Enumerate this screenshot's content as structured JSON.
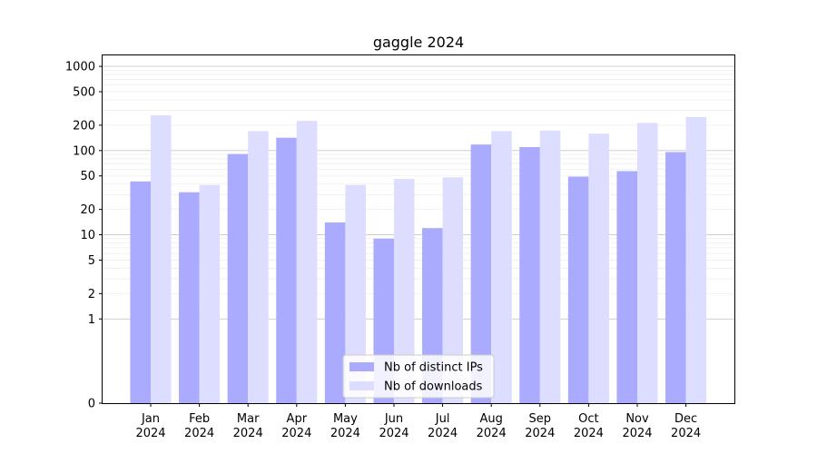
{
  "chart_data": {
    "type": "bar",
    "title": "gaggle 2024",
    "xlabel": "",
    "ylabel": "",
    "yscale": "symlog",
    "ylim": [
      0,
      1350
    ],
    "yticks": [
      0,
      1,
      2,
      5,
      10,
      20,
      50,
      100,
      200,
      500,
      1000
    ],
    "ytick_labels": [
      "0",
      "1",
      "2",
      "5",
      "10",
      "20",
      "50",
      "100",
      "200",
      "500",
      "1000"
    ],
    "grid": true,
    "legend_position": "bottom-center",
    "categories": [
      "Jan\n2024",
      "Feb\n2024",
      "Mar\n2024",
      "Apr\n2024",
      "May\n2024",
      "Jun\n2024",
      "Jul\n2024",
      "Aug\n2024",
      "Sep\n2024",
      "Oct\n2024",
      "Nov\n2024",
      "Dec\n2024"
    ],
    "series": [
      {
        "name": "Nb of distinct IPs",
        "color": "#aaaaff",
        "values": [
          43,
          32,
          91,
          142,
          14,
          9,
          12,
          118,
          110,
          49,
          57,
          96
        ]
      },
      {
        "name": "Nb of downloads",
        "color": "#ddddff",
        "values": [
          262,
          39,
          170,
          225,
          39,
          46,
          48,
          170,
          173,
          159,
          213,
          250
        ]
      }
    ]
  }
}
